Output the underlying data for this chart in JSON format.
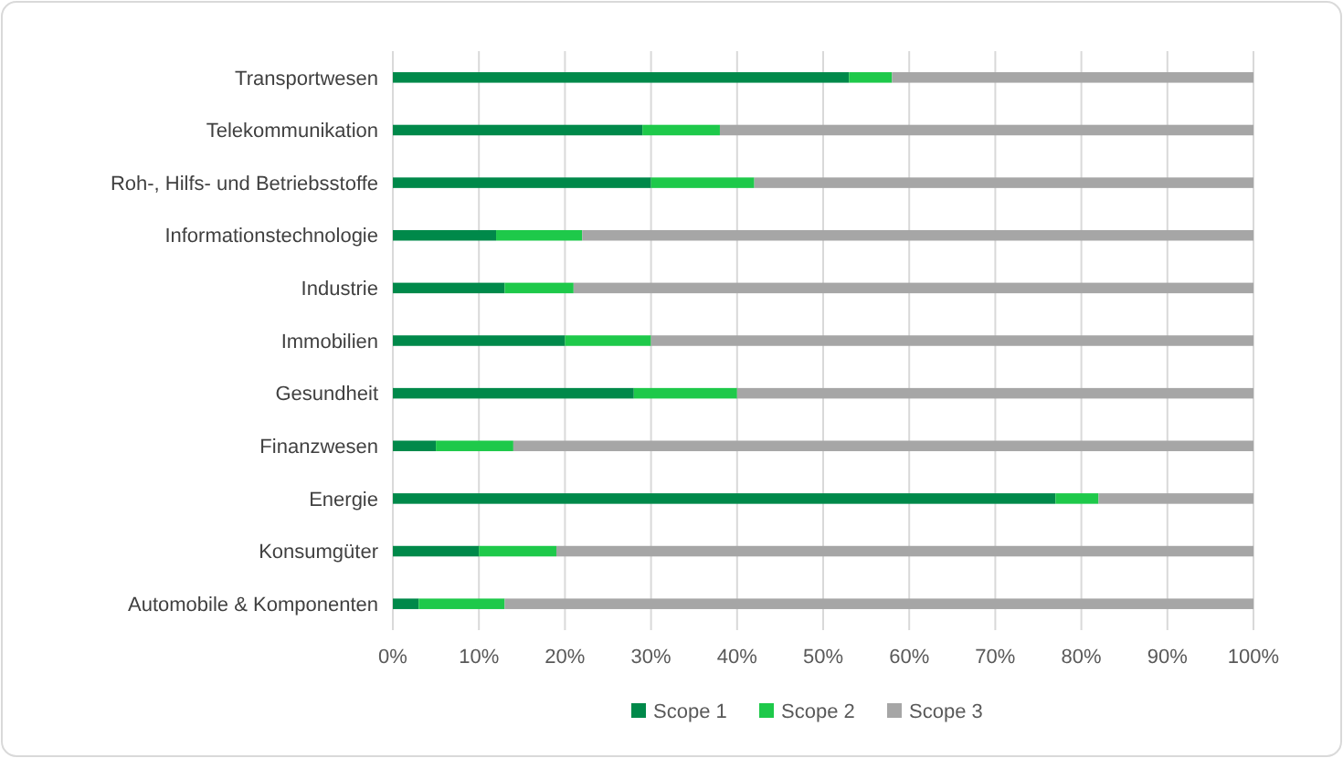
{
  "chart_data": {
    "type": "bar",
    "orientation": "horizontal",
    "stacked": true,
    "categories": [
      "Transportwesen",
      "Telekommunikation",
      "Roh-, Hilfs- und Betriebsstoffe",
      "Informationstechnologie",
      "Industrie",
      "Immobilien",
      "Gesundheit",
      "Finanzwesen",
      "Energie",
      "Konsumgüter",
      "Automobile & Komponenten"
    ],
    "series": [
      {
        "name": "Scope 1",
        "color": "#00894a",
        "values": [
          53,
          29,
          30,
          12,
          13,
          20,
          28,
          5,
          77,
          10,
          3
        ]
      },
      {
        "name": "Scope 2",
        "color": "#1ec94a",
        "values": [
          5,
          9,
          12,
          10,
          8,
          10,
          12,
          9,
          5,
          9,
          10
        ]
      },
      {
        "name": "Scope 3",
        "color": "#a6a6a6",
        "values": [
          42,
          62,
          58,
          78,
          79,
          70,
          60,
          86,
          18,
          81,
          87
        ]
      }
    ],
    "xlim": [
      0,
      100
    ],
    "xticks": [
      {
        "value": 0,
        "label": "0%"
      },
      {
        "value": 10,
        "label": "10%"
      },
      {
        "value": 20,
        "label": "20%"
      },
      {
        "value": 30,
        "label": "30%"
      },
      {
        "value": 40,
        "label": "40%"
      },
      {
        "value": 50,
        "label": "50%"
      },
      {
        "value": 60,
        "label": "60%"
      },
      {
        "value": 70,
        "label": "70%"
      },
      {
        "value": 80,
        "label": "80%"
      },
      {
        "value": 90,
        "label": "90%"
      },
      {
        "value": 100,
        "label": "100%"
      }
    ],
    "grid": "x",
    "legend": "bottom"
  }
}
